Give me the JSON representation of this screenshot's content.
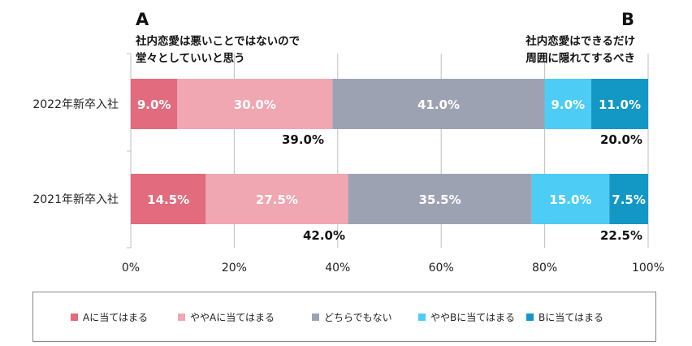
{
  "header": {
    "left_letter": "A",
    "left_text": [
      "社内恋愛は悪いことではないので",
      "堂々としていいと思う"
    ],
    "right_letter": "B",
    "right_text": [
      "社内恋愛はできるだけ",
      "周囲に隠れてするべき"
    ]
  },
  "chart_data": {
    "type": "bar",
    "orientation": "horizontal",
    "stacked": true,
    "percent": true,
    "categories": [
      "2022年新卒入社",
      "2021年新卒入社"
    ],
    "series": [
      {
        "name": "Aに当てはまる",
        "color": "#e26b7d",
        "values": [
          9.0,
          14.5
        ],
        "labels": [
          "9.0%",
          "14.5%"
        ]
      },
      {
        "name": "ややAに当てはまる",
        "color": "#f0a7b1",
        "values": [
          30.0,
          27.5
        ],
        "labels": [
          "30.0%",
          "27.5%"
        ]
      },
      {
        "name": "どちらでもない",
        "color": "#9da2b3",
        "values": [
          41.0,
          35.5
        ],
        "labels": [
          "41.0%",
          "35.5%"
        ]
      },
      {
        "name": "ややBに当てはまる",
        "color": "#4dcdf6",
        "values": [
          9.0,
          15.0
        ],
        "labels": [
          "9.0%",
          "15.0%"
        ]
      },
      {
        "name": "Bに当てはまる",
        "color": "#1398c6",
        "values": [
          11.0,
          7.5
        ],
        "labels": [
          "11.0%",
          "7.5%"
        ]
      }
    ],
    "totals_a": [
      "39.0%",
      "42.0%"
    ],
    "totals_b": [
      "20.0%",
      "22.5%"
    ],
    "xlim": [
      0,
      100
    ],
    "xticks": [
      0,
      20,
      40,
      60,
      80,
      100
    ],
    "xtick_labels": [
      "0%",
      "20%",
      "40%",
      "60%",
      "80%",
      "100%"
    ],
    "grid": true,
    "legend_position": "bottom"
  }
}
